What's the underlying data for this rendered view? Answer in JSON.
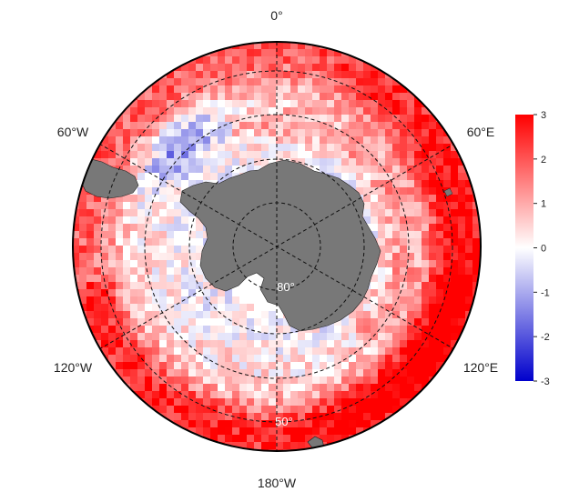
{
  "map": {
    "projection": "south-polar-stereographic",
    "longitude_labels": {
      "top": "0°",
      "upper_left": "60°W",
      "upper_right": "60°E",
      "lower_left": "120°W",
      "lower_right": "120°E",
      "bottom": "180°W"
    },
    "latitude_labels": {
      "inner": "80°",
      "outer": "50°"
    },
    "colors": {
      "land": "#787878",
      "negative_max": "#0000cc",
      "zero": "#ffffff",
      "positive_max": "#ff0000"
    }
  },
  "colorbar": {
    "ticks": [
      "3",
      "2",
      "1",
      "0",
      "-1",
      "-2",
      "-3"
    ],
    "range": [
      -3,
      3
    ]
  }
}
